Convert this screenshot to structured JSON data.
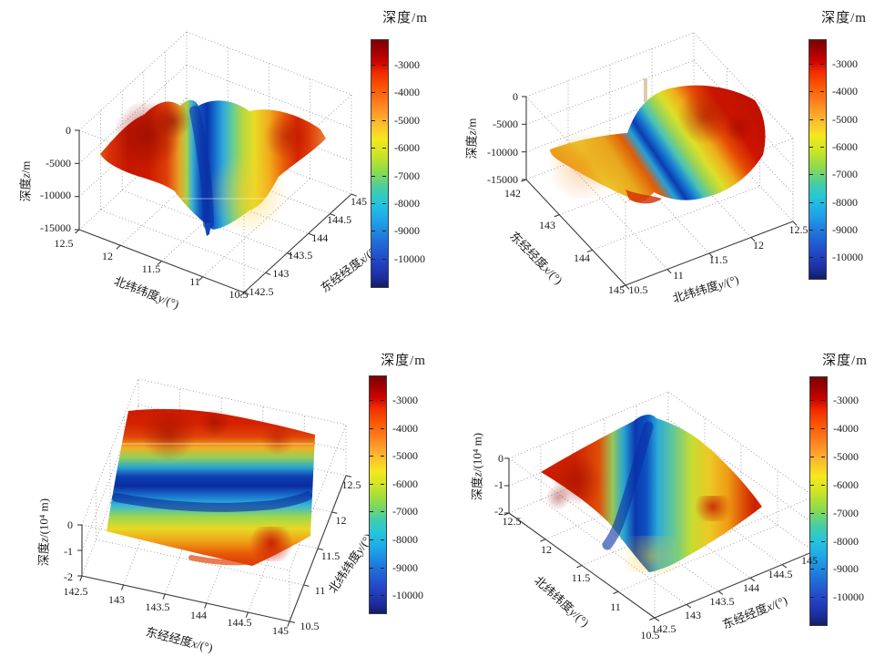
{
  "figure": {
    "background": "#ffffff",
    "description_colors": {
      "accent_deep": "#0a2ca0",
      "accent_shallow": "#cc1400"
    },
    "colorbar_gradient": [
      "#7a0403",
      "#cc0500",
      "#fb5500",
      "#fdb52f",
      "#f5e81e",
      "#8fdb4b",
      "#46cda4",
      "#25c5dd",
      "#1ea4e8",
      "#1f72da",
      "#2347c8",
      "#141c66"
    ]
  },
  "panels": [
    {
      "id": "top-left",
      "colorbar": {
        "title": "深度/m",
        "ticks": [
          "-3000",
          "-4000",
          "-5000",
          "-6000",
          "-7000",
          "-8000",
          "-9000",
          "-10000"
        ]
      },
      "z_axis": {
        "label_prefix": "深度",
        "label_var": "z",
        "label_suffix": "/m",
        "ticks": [
          "0",
          "-5000",
          "-10000",
          "-15000"
        ]
      },
      "left_axis": {
        "label_prefix": "北纬纬度",
        "label_var": "y",
        "label_suffix": "/(°)",
        "ticks": [
          "12.5",
          "12",
          "11.5",
          "11",
          "10.5"
        ]
      },
      "right_axis": {
        "label_prefix": "东经经度",
        "label_var": "x",
        "label_suffix": "/(°)",
        "ticks": [
          "142.5",
          "143",
          "143.5",
          "144",
          "144.5",
          "145"
        ]
      }
    },
    {
      "id": "top-right",
      "colorbar": {
        "title": "深度/m",
        "ticks": [
          "-3000",
          "-4000",
          "-5000",
          "-6000",
          "-7000",
          "-8000",
          "-9000",
          "-10000"
        ]
      },
      "z_axis": {
        "label_prefix": "深度",
        "label_var": "z",
        "label_suffix": "/m",
        "ticks": [
          "0",
          "-5000",
          "-10000",
          "-15000"
        ]
      },
      "left_axis": {
        "label_prefix": "东经经度",
        "label_var": "x",
        "label_suffix": "/(°)",
        "ticks": [
          "142",
          "143",
          "144",
          "145"
        ]
      },
      "right_axis": {
        "label_prefix": "北纬纬度",
        "label_var": "y",
        "label_suffix": "/(°)",
        "ticks": [
          "10.5",
          "11",
          "11.5",
          "12",
          "12.5"
        ]
      }
    },
    {
      "id": "bottom-left",
      "colorbar": {
        "title": "深度/m",
        "ticks": [
          "-3000",
          "-4000",
          "-5000",
          "-6000",
          "-7000",
          "-8000",
          "-9000",
          "-10000"
        ]
      },
      "z_axis": {
        "label_prefix": "深度",
        "label_var": "z",
        "label_suffix": "/(10⁴ m)",
        "ticks": [
          "0",
          "-1",
          "-2"
        ]
      },
      "left_axis": {
        "label_prefix": "东经经度",
        "label_var": "x",
        "label_suffix": "/(°)",
        "ticks": [
          "142.5",
          "143",
          "143.5",
          "144",
          "144.5",
          "145"
        ]
      },
      "right_axis": {
        "label_prefix": "北纬纬度",
        "label_var": "y",
        "label_suffix": "/(°)",
        "ticks": [
          "10.5",
          "11",
          "11.5",
          "12",
          "12.5"
        ]
      }
    },
    {
      "id": "bottom-right",
      "colorbar": {
        "title": "深度/m",
        "ticks": [
          "-3000",
          "-4000",
          "-5000",
          "-6000",
          "-7000",
          "-8000",
          "-9000",
          "-10000"
        ]
      },
      "z_axis": {
        "label_prefix": "深度",
        "label_var": "z",
        "label_suffix": "/(10⁴ m)",
        "ticks": [
          "0",
          "-1",
          "-2"
        ]
      },
      "left_axis": {
        "label_prefix": "北纬纬度",
        "label_var": "y",
        "label_suffix": "/(°)",
        "ticks": [
          "12.5",
          "12",
          "11.5",
          "11",
          "10.5"
        ]
      },
      "right_axis": {
        "label_prefix": "东经经度",
        "label_var": "x",
        "label_suffix": "/(°)",
        "ticks": [
          "142.5",
          "143",
          "143.5",
          "144",
          "144.5",
          "145"
        ]
      }
    }
  ],
  "chart_data": {
    "type": "surface",
    "count": 4,
    "note": "Four 3D views of the same seafloor bathymetry surface (Mariana-Trench area); color encodes depth (jet colormap)",
    "x": {
      "label": "东经经度x/(°)",
      "range": [
        142.5,
        145
      ]
    },
    "y": {
      "label": "北纬纬度y/(°)",
      "range": [
        10.5,
        12.5
      ]
    },
    "colorbar": {
      "label": "深度/m",
      "ticks": [
        -3000,
        -4000,
        -5000,
        -6000,
        -7000,
        -8000,
        -9000,
        -10000
      ],
      "color_range_m": [
        -11000,
        -2500
      ]
    },
    "views": [
      {
        "position": "top-left",
        "z_label": "深度z/m",
        "z_ticks": [
          0,
          -5000,
          -10000,
          -15000
        ],
        "front_left_axis": "latitude 12.5→10.5",
        "front_right_axis": "longitude 142.5→145"
      },
      {
        "position": "top-right",
        "z_label": "深度z/m",
        "z_ticks": [
          0,
          -5000,
          -10000,
          -15000
        ],
        "front_left_axis": "longitude 142→145",
        "front_right_axis": "latitude 10.5→12.5"
      },
      {
        "position": "bottom-left",
        "z_label": "深度z/(10⁴ m)",
        "z_ticks": [
          0,
          -1,
          -2
        ],
        "front_left_axis": "longitude 142.5→145",
        "front_right_axis": "latitude 10.5→12.5"
      },
      {
        "position": "bottom-right",
        "z_label": "深度z/(10⁴ m)",
        "z_ticks": [
          0,
          -1,
          -2
        ],
        "front_left_axis": "latitude 12.5→10.5",
        "front_right_axis": "longitude 142.5→145"
      }
    ],
    "estimated_depth_grid": {
      "lat": [
        12.5,
        12,
        11.5,
        11,
        10.5
      ],
      "lon": [
        142.5,
        143,
        143.5,
        144,
        144.5,
        145
      ],
      "depth_m": [
        [
          -3000,
          -3200,
          -3000,
          -3600,
          -4300,
          -5600
        ],
        [
          -3600,
          -3900,
          -4200,
          -4600,
          -5200,
          -6600
        ],
        [
          -8200,
          -9600,
          -10200,
          -10600,
          -10000,
          -8600
        ],
        [
          -5000,
          -5600,
          -6000,
          -5200,
          -4200,
          -5600
        ],
        [
          -4200,
          -4600,
          -5000,
          -4800,
          -4500,
          -5200
        ]
      ]
    }
  }
}
